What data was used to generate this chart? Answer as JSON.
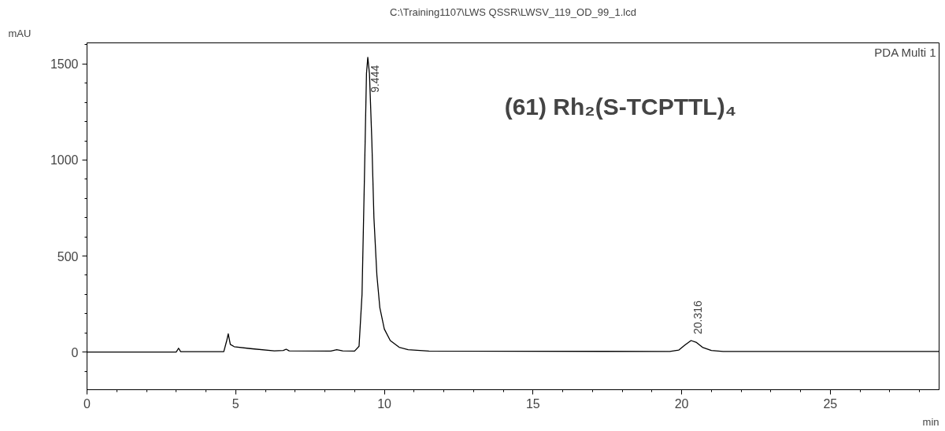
{
  "chart_data": {
    "type": "line",
    "title": "C:\\Training1107\\LWS QSSR\\LWSV_119_OD_99_1.lcd",
    "xlabel": "min",
    "ylabel": "mAU",
    "x": [
      0,
      3.0,
      3.08,
      3.15,
      4.6,
      4.7,
      4.75,
      4.82,
      4.95,
      5.5,
      6.3,
      6.6,
      6.7,
      6.8,
      8.2,
      8.4,
      8.6,
      9.0,
      9.15,
      9.25,
      9.33,
      9.4,
      9.444,
      9.5,
      9.58,
      9.65,
      9.75,
      9.85,
      10.0,
      10.2,
      10.5,
      10.8,
      11.5,
      19.6,
      19.9,
      20.1,
      20.316,
      20.5,
      20.7,
      21.0,
      21.4,
      28.66
    ],
    "series": [
      {
        "color": "#000000",
        "values": [
          0,
          0,
          20,
          2,
          2,
          60,
          95,
          40,
          28,
          18,
          6,
          8,
          15,
          6,
          5,
          12,
          6,
          5,
          30,
          300,
          900,
          1450,
          1535,
          1450,
          1100,
          700,
          400,
          230,
          120,
          60,
          25,
          12,
          5,
          3,
          10,
          35,
          60,
          50,
          25,
          8,
          3,
          3
        ]
      }
    ],
    "xlim": [
      0,
      28.66
    ],
    "ylim": [
      -196,
      1610
    ],
    "xticks": [
      0,
      5,
      10,
      15,
      20,
      25
    ],
    "yticks": [
      0,
      500,
      1000,
      1500
    ],
    "grid": false,
    "marker": "none",
    "line_style": "solid",
    "annotations": [
      {
        "text": "9.444",
        "x": 9.444,
        "y": 1535
      },
      {
        "text": "20.316",
        "x": 20.316,
        "y": 60
      },
      "PDA Multi 1",
      "(61) Rh₂(S-TCPTTL)₄"
    ]
  }
}
